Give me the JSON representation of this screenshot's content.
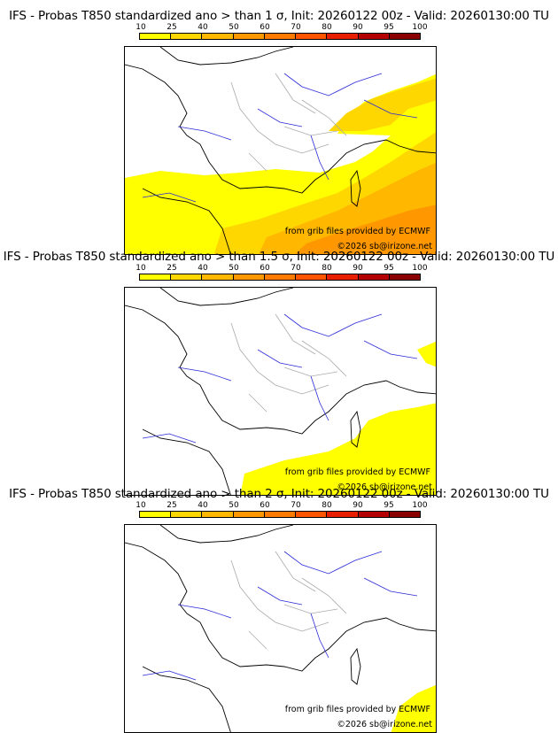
{
  "colors": {
    "scale": [
      "#ffff00",
      "#ffd700",
      "#ffb700",
      "#ff9800",
      "#ff7b00",
      "#ff5400",
      "#e81e00",
      "#b40000",
      "#8a0000",
      "#5a0000"
    ],
    "coast": "#000000",
    "rivers": "#2a2ad8",
    "borders": "#aaaaaa"
  },
  "scale": {
    "labels": [
      "10",
      "25",
      "40",
      "50",
      "60",
      "70",
      "80",
      "90",
      "95",
      "100"
    ]
  },
  "panels": [
    {
      "title": "IFS - Probas T850  standardized ano > than 1 σ, Init: 20260122 00z - Valid: 20260130:00 TU",
      "credit_source": "from grib files provided by ECMWF",
      "credit_site": "©2026 sb@irizone.net"
    },
    {
      "title": "IFS - Probas T850  standardized ano > than 1.5 σ, Init: 20260122 00z - Valid: 20260130:00 TU",
      "credit_source": "from grib files provided by ECMWF",
      "credit_site": "©2026 sb@irizone.net"
    },
    {
      "title": "IFS - Probas T850  standardized ano > than 2 σ, Init: 20260122 00z - Valid: 20260130:00 TU",
      "credit_source": "from grib files provided by ECMWF",
      "credit_site": "©2026 sb@irizone.net"
    }
  ]
}
